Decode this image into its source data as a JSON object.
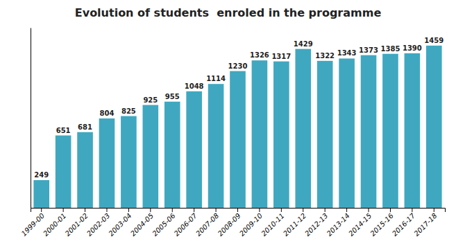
{
  "chart_data": {
    "type": "bar",
    "title": "Evolution of students  enroled in the programme",
    "categories": [
      "1999-00",
      "2000-01",
      "2001-02",
      "2002-03",
      "2003-04",
      "2004-05",
      "2005-06",
      "2006-07",
      "2007-08",
      "2008-09",
      "2009-10",
      "2010-11",
      "2011-12",
      "2012-13",
      "2013-14",
      "2014-15",
      "2015-16",
      "2016-17",
      "2017-18"
    ],
    "values": [
      249,
      651,
      681,
      804,
      825,
      925,
      955,
      1048,
      1114,
      1230,
      1326,
      1317,
      1429,
      1322,
      1343,
      1373,
      1385,
      1390,
      1459
    ],
    "color": "#3fa8c0",
    "ylim": [
      0,
      1620
    ],
    "data_labels": true,
    "tick_labels": "x"
  }
}
